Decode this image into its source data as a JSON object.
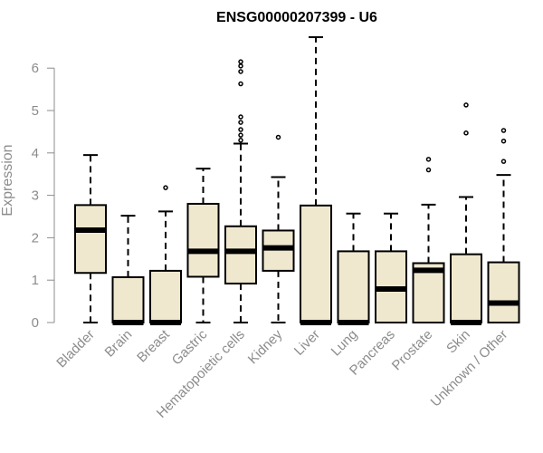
{
  "chart_data": {
    "type": "boxplot",
    "title": "ENSG00000207399 - U6",
    "xlabel": "",
    "ylabel": "Expression",
    "ylim": [
      0,
      6.5
    ],
    "yticks": [
      "0",
      "1",
      "2",
      "3",
      "4",
      "5",
      "6"
    ],
    "grid": false,
    "legend": "none",
    "box_fill": "#efe8cf",
    "line_color": "#000000",
    "categories": [
      "Bladder",
      "Brain",
      "Breast",
      "Gastric",
      "Hematopoietic cells",
      "Kidney",
      "Liver",
      "Lung",
      "Pancreas",
      "Prostate",
      "Skin",
      "Unknown / Other"
    ],
    "boxes": [
      {
        "min": 0.0,
        "q1": 1.17,
        "median": 2.18,
        "q3": 2.77,
        "max": 3.95,
        "outliers": []
      },
      {
        "min": 0.0,
        "q1": 0.0,
        "median": 0.0,
        "q3": 1.07,
        "max": 2.52,
        "outliers": []
      },
      {
        "min": 0.0,
        "q1": 0.0,
        "median": 0.0,
        "q3": 1.22,
        "max": 2.62,
        "outliers": [
          3.18
        ]
      },
      {
        "min": 0.0,
        "q1": 1.08,
        "median": 1.68,
        "q3": 2.8,
        "max": 3.63,
        "outliers": []
      },
      {
        "min": 0.0,
        "q1": 0.92,
        "median": 1.68,
        "q3": 2.27,
        "max": 4.22,
        "outliers": [
          4.3,
          4.42,
          4.55,
          4.72,
          4.85,
          5.63,
          5.92,
          6.05,
          6.15
        ]
      },
      {
        "min": 0.0,
        "q1": 1.22,
        "median": 1.76,
        "q3": 2.17,
        "max": 3.43,
        "outliers": [
          4.37
        ]
      },
      {
        "min": 0.0,
        "q1": 0.0,
        "median": 0.0,
        "q3": 2.76,
        "max": 6.73,
        "outliers": []
      },
      {
        "min": 0.0,
        "q1": 0.0,
        "median": 0.0,
        "q3": 1.68,
        "max": 2.57,
        "outliers": []
      },
      {
        "min": 0.0,
        "q1": 0.0,
        "median": 0.79,
        "q3": 1.68,
        "max": 2.57,
        "outliers": []
      },
      {
        "min": 0.0,
        "q1": 0.0,
        "median": 1.23,
        "q3": 1.4,
        "max": 2.78,
        "outliers": [
          3.6,
          3.85
        ]
      },
      {
        "min": 0.0,
        "q1": 0.0,
        "median": 0.0,
        "q3": 1.61,
        "max": 2.96,
        "outliers": [
          4.47,
          5.13
        ]
      },
      {
        "min": 0.0,
        "q1": 0.0,
        "median": 0.46,
        "q3": 1.42,
        "max": 3.48,
        "outliers": [
          3.8,
          4.28,
          4.53
        ]
      }
    ]
  }
}
